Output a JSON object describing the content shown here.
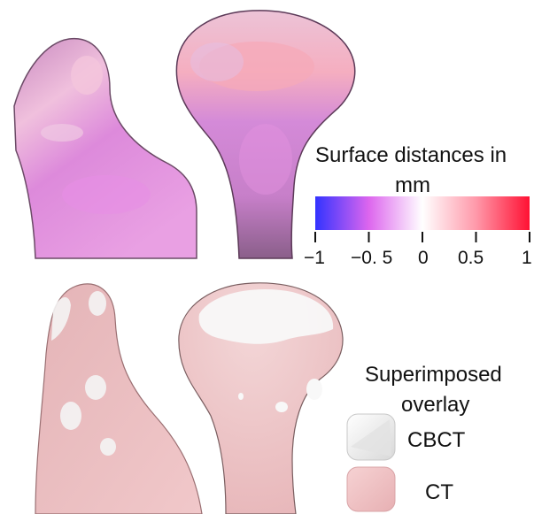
{
  "colorbar": {
    "title_line1": "Surface distances in",
    "title_line2": "mm",
    "ticks": [
      "−1",
      "−0. 5",
      "0",
      "0.5",
      "1"
    ],
    "min": -1,
    "max": 1,
    "colors": {
      "negative": "#3333ff",
      "mid_negative": "#dd66ee",
      "zero": "#ffffff",
      "positive": "#ff1133"
    }
  },
  "overlay_legend": {
    "title_line1": "Superimposed",
    "title_line2": "overlay",
    "items": [
      {
        "label": "CBCT",
        "color": "#f2f2f2"
      },
      {
        "label": "CT",
        "color": "#f2c4c6"
      }
    ]
  },
  "panels": [
    {
      "name": "heatmap-left-bone",
      "colors": [
        "#d47ac9",
        "#f3b6d8",
        "#e68ae0"
      ]
    },
    {
      "name": "heatmap-right-bone",
      "colors": [
        "#e5a0c8",
        "#f6b3bf",
        "#cc78d2"
      ]
    },
    {
      "name": "overlay-left-bone",
      "colors": [
        "#efc3c5",
        "#f4f4f4"
      ]
    },
    {
      "name": "overlay-right-bone",
      "colors": [
        "#efc3c5",
        "#f8f8f8"
      ]
    }
  ]
}
